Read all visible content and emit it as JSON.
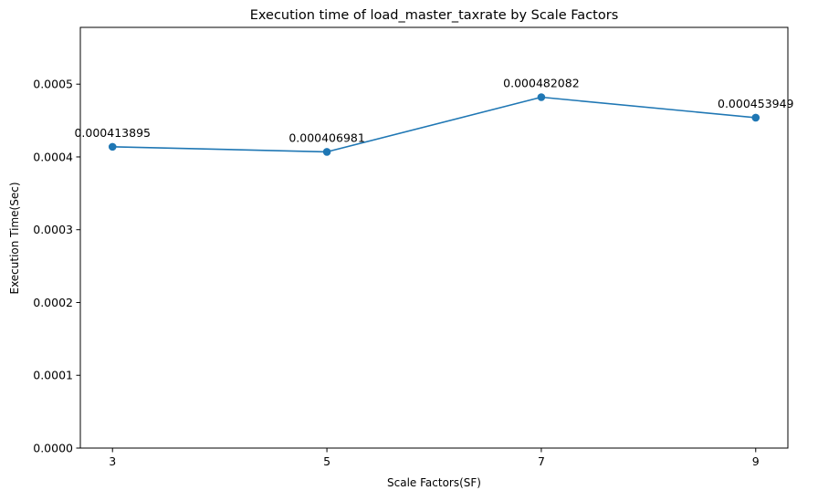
{
  "chart_data": {
    "type": "line",
    "title": "Execution time of load_master_taxrate by Scale Factors",
    "xlabel": "Scale Factors(SF)",
    "ylabel": "Execution Time(Sec)",
    "x": [
      3,
      5,
      7,
      9
    ],
    "series": [
      {
        "values": [
          0.000413895,
          0.000406981,
          0.000482082,
          0.000453949
        ],
        "point_labels": [
          "0.000413895",
          "0.000406981",
          "0.000482082",
          "0.000453949"
        ],
        "color": "#1f77b4",
        "marker": "circle"
      }
    ],
    "xlim": [
      2.7,
      9.3
    ],
    "ylim": [
      0,
      0.000578
    ],
    "x_ticks": [
      {
        "value": 3,
        "label": "3"
      },
      {
        "value": 5,
        "label": "5"
      },
      {
        "value": 7,
        "label": "7"
      },
      {
        "value": 9,
        "label": "9"
      }
    ],
    "y_ticks": [
      {
        "value": 0,
        "label": "0.0000"
      },
      {
        "value": 0.0001,
        "label": "0.0001"
      },
      {
        "value": 0.0002,
        "label": "0.0002"
      },
      {
        "value": 0.0003,
        "label": "0.0003"
      },
      {
        "value": 0.0004,
        "label": "0.0004"
      },
      {
        "value": 0.0005,
        "label": "0.0005"
      }
    ],
    "grid": false,
    "legend": "none"
  }
}
